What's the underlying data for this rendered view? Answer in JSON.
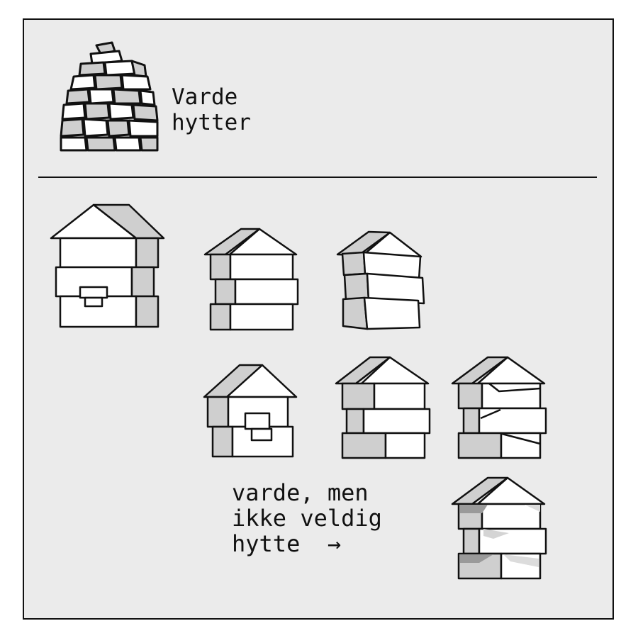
{
  "header": {
    "title_line1": "Varde",
    "title_line2": "hytter",
    "logo_icon": "cairn-stone-stack-icon"
  },
  "caption": {
    "line1": "varde, men",
    "line2": "ikke veldig",
    "line3": "hytte  →"
  },
  "colors": {
    "background": "#ebebeb",
    "stroke": "#111111",
    "fill_light": "#ffffff",
    "fill_shade": "#cfcfcf",
    "fill_dark": "#9a9a9a"
  }
}
